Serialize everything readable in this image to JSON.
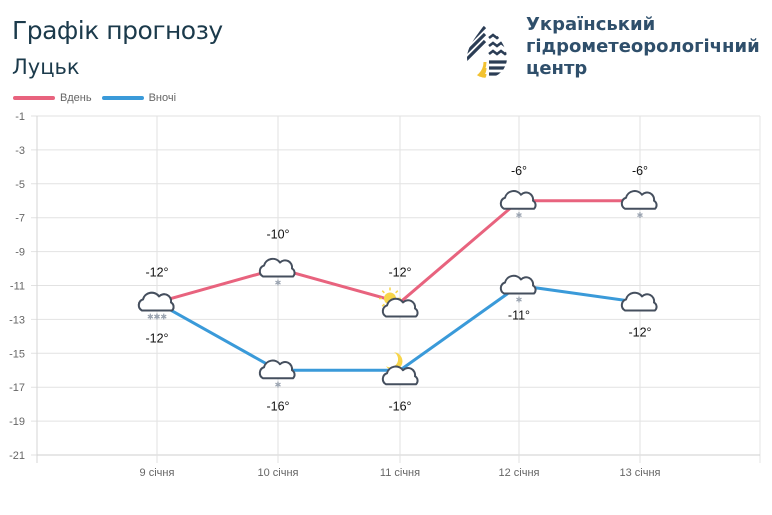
{
  "header": {
    "title": "Графік прогнозу",
    "city": "Луцьк",
    "organization": [
      "Український",
      "гідрометеорологічний",
      "центр"
    ]
  },
  "legend": [
    {
      "label": "Вдень",
      "color": "#e8637e"
    },
    {
      "label": "Вночі",
      "color": "#3a9ad9"
    }
  ],
  "chart_data": {
    "type": "line",
    "title": "Графік прогнозу — Луцьк",
    "categories": [
      "9 січня",
      "10 січня",
      "11 січня",
      "12 січня",
      "13 січня"
    ],
    "series": [
      {
        "name": "Вдень",
        "color": "#e8637e",
        "values": [
          -12,
          -10,
          -12,
          -6,
          -6
        ],
        "labels": [
          "-12°",
          "-10°",
          "-12°",
          "-6°",
          "-6°"
        ],
        "icons": [
          "cloud-snow-icon",
          "cloud-snow-icon",
          "sun-cloud-icon",
          "cloud-snow-icon",
          "cloud-snow-icon"
        ]
      },
      {
        "name": "Вночі",
        "color": "#3a9ad9",
        "values": [
          -12,
          -16,
          -16,
          -11,
          -12
        ],
        "labels": [
          "-12°",
          "-16°",
          "-16°",
          "-11°",
          "-12°"
        ],
        "icons": [
          "cloud-snow-icon",
          "cloud-snow-icon",
          "moon-cloud-icon",
          "cloud-snow-icon",
          "cloud-icon"
        ]
      }
    ],
    "yticks": [
      -1,
      -3,
      -5,
      -7,
      -9,
      -11,
      -13,
      -15,
      -17,
      -19,
      -21
    ],
    "ylim": [
      -21,
      -1
    ],
    "xlabel": "",
    "ylabel": "",
    "grid": true,
    "legend_position": "top-left"
  }
}
